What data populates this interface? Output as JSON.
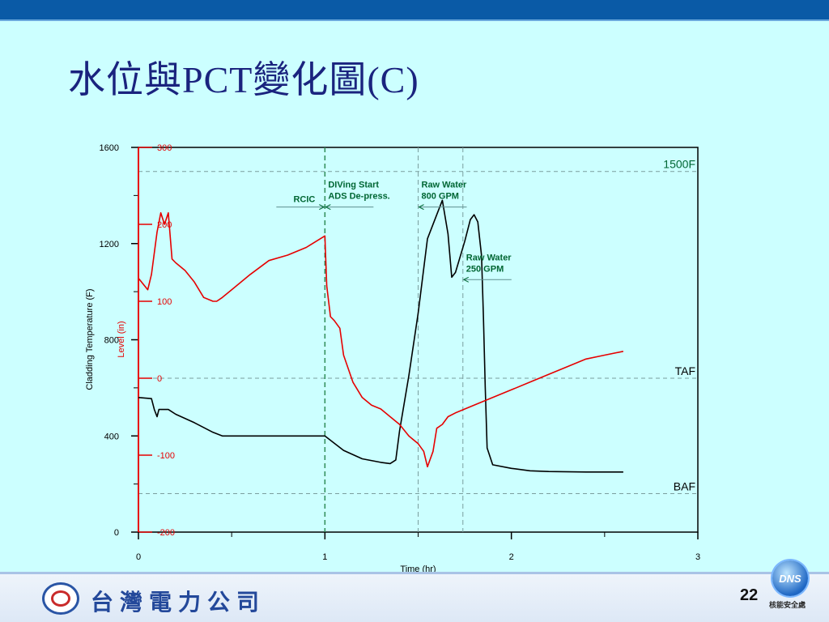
{
  "slide": {
    "title": "水位與PCT變化圖(C)",
    "page_number": "22",
    "company_name": "台灣電力公司",
    "logo_text": "DNS",
    "logo_caption": "核能安全處"
  },
  "colors": {
    "temperature": "#000000",
    "level": "#e60000",
    "annotation": "#006633",
    "background": "#ccffff"
  },
  "chart_data": {
    "type": "line",
    "xlabel": "Time (hr)",
    "ylabel_left": "Cladding Temperature (F)",
    "ylabel_right": "Level (in)",
    "xlim": [
      0,
      3
    ],
    "ylim_left": [
      0,
      1600
    ],
    "ylim_right": [
      -200,
      300
    ],
    "x_ticks": [
      0,
      1,
      2,
      3
    ],
    "y_ticks_left": [
      0,
      400,
      800,
      1200,
      1600
    ],
    "y_ticks_right": [
      -200,
      -100,
      0,
      100,
      200,
      300
    ],
    "series": [
      {
        "axis": "left",
        "color": "#000000",
        "points": [
          [
            0,
            560
          ],
          [
            0.07,
            555
          ],
          [
            0.085,
            510
          ],
          [
            0.1,
            480
          ],
          [
            0.11,
            510
          ],
          [
            0.16,
            510
          ],
          [
            0.2,
            490
          ],
          [
            0.3,
            455
          ],
          [
            0.4,
            415
          ],
          [
            0.45,
            400
          ],
          [
            0.6,
            400
          ],
          [
            0.8,
            400
          ],
          [
            1.0,
            400
          ],
          [
            1.05,
            370
          ],
          [
            1.1,
            340
          ],
          [
            1.2,
            305
          ],
          [
            1.3,
            290
          ],
          [
            1.35,
            285
          ],
          [
            1.38,
            300
          ],
          [
            1.4,
            420
          ],
          [
            1.45,
            650
          ],
          [
            1.5,
            910
          ],
          [
            1.55,
            1220
          ],
          [
            1.6,
            1320
          ],
          [
            1.63,
            1380
          ],
          [
            1.66,
            1240
          ],
          [
            1.68,
            1060
          ],
          [
            1.7,
            1080
          ],
          [
            1.75,
            1210
          ],
          [
            1.78,
            1300
          ],
          [
            1.8,
            1320
          ],
          [
            1.82,
            1290
          ],
          [
            1.84,
            1150
          ],
          [
            1.85,
            900
          ],
          [
            1.86,
            600
          ],
          [
            1.87,
            350
          ],
          [
            1.9,
            280
          ],
          [
            2.0,
            265
          ],
          [
            2.1,
            255
          ],
          [
            2.2,
            252
          ],
          [
            2.4,
            250
          ],
          [
            2.6,
            250
          ]
        ]
      },
      {
        "axis": "right",
        "color": "#e60000",
        "points": [
          [
            0,
            130
          ],
          [
            0.05,
            115
          ],
          [
            0.07,
            135
          ],
          [
            0.1,
            190
          ],
          [
            0.12,
            215
          ],
          [
            0.14,
            200
          ],
          [
            0.16,
            215
          ],
          [
            0.18,
            155
          ],
          [
            0.2,
            150
          ],
          [
            0.25,
            140
          ],
          [
            0.3,
            125
          ],
          [
            0.35,
            105
          ],
          [
            0.4,
            100
          ],
          [
            0.42,
            100
          ],
          [
            0.45,
            105
          ],
          [
            0.5,
            115
          ],
          [
            0.6,
            135
          ],
          [
            0.7,
            153
          ],
          [
            0.8,
            160
          ],
          [
            0.9,
            170
          ],
          [
            1.0,
            185
          ],
          [
            1.01,
            120
          ],
          [
            1.03,
            80
          ],
          [
            1.05,
            75
          ],
          [
            1.08,
            65
          ],
          [
            1.1,
            30
          ],
          [
            1.15,
            -5
          ],
          [
            1.2,
            -25
          ],
          [
            1.25,
            -35
          ],
          [
            1.3,
            -40
          ],
          [
            1.35,
            -50
          ],
          [
            1.4,
            -60
          ],
          [
            1.45,
            -75
          ],
          [
            1.5,
            -85
          ],
          [
            1.53,
            -95
          ],
          [
            1.55,
            -115
          ],
          [
            1.58,
            -95
          ],
          [
            1.6,
            -65
          ],
          [
            1.63,
            -60
          ],
          [
            1.66,
            -50
          ],
          [
            1.7,
            -45
          ],
          [
            1.75,
            -40
          ],
          [
            1.8,
            -35
          ],
          [
            1.9,
            -25
          ],
          [
            2.0,
            -15
          ],
          [
            2.1,
            -5
          ],
          [
            2.2,
            5
          ],
          [
            2.3,
            15
          ],
          [
            2.4,
            25
          ],
          [
            2.5,
            30
          ],
          [
            2.6,
            35
          ]
        ]
      }
    ],
    "reference_lines": [
      {
        "label": "1500F",
        "axis": "left",
        "y": 1500
      },
      {
        "label": "TAF",
        "axis": "right",
        "y": 0
      },
      {
        "label": "BAF",
        "axis": "right",
        "y": -150
      }
    ],
    "event_lines": [
      1.0,
      1.5,
      1.74
    ],
    "annotations": [
      {
        "id": "rcic",
        "lines": [
          "RCIC"
        ],
        "x": 1.0,
        "y_left": 1352,
        "arrow_dir": "right"
      },
      {
        "id": "diving",
        "lines": [
          "DIVing Start",
          "ADS De-press."
        ],
        "x": 1.0,
        "y_left": 1352,
        "arrow_dir": "left"
      },
      {
        "id": "raw800",
        "lines": [
          "Raw Water",
          "800 GPM"
        ],
        "x": 1.5,
        "y_left": 1352,
        "arrow_dir": "left"
      },
      {
        "id": "raw250",
        "lines": [
          "Raw Water",
          "250 GPM"
        ],
        "x": 1.74,
        "y_left": 1050,
        "arrow_dir": "left"
      }
    ]
  }
}
